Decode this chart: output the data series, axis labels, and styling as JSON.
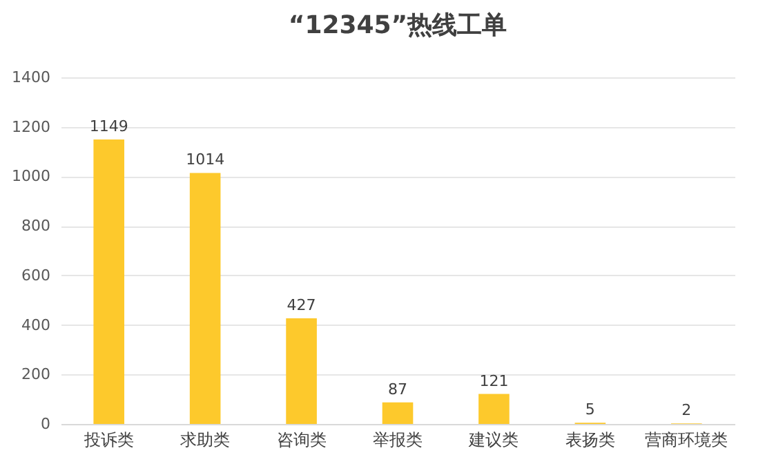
{
  "chart_data": {
    "type": "bar",
    "title": "“12345”热线工单",
    "categories": [
      "投诉类",
      "求助类",
      "咨询类",
      "举报类",
      "建议类",
      "表扬类",
      "营商环境类"
    ],
    "values": [
      1149,
      1014,
      427,
      87,
      121,
      5,
      2
    ],
    "color": "#fdc92c",
    "ylim": [
      0,
      1400
    ],
    "yticks": [
      0,
      200,
      400,
      600,
      800,
      1000,
      1200,
      1400
    ],
    "grid": "y",
    "data_labels": true
  }
}
